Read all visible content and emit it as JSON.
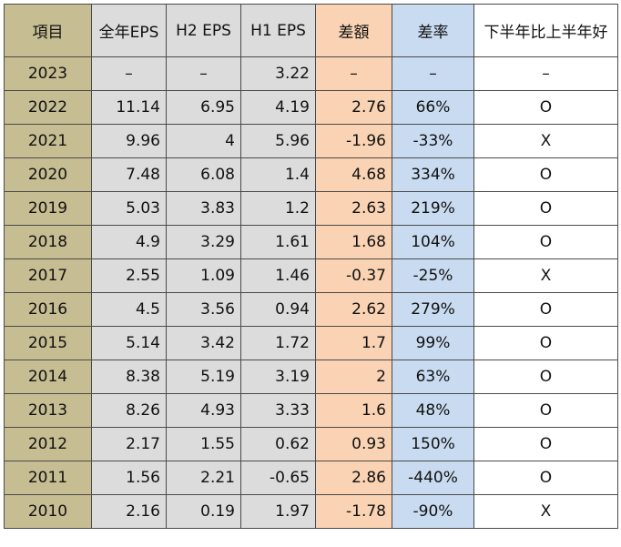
{
  "headers": [
    "項目",
    "全年EPS",
    "H2 EPS",
    "H1 EPS",
    "差額",
    "差率",
    "下半年比上半年好"
  ],
  "colors": {
    "year": "#c7bd92",
    "eps": "#dcdcdc",
    "diff": "#f9d3b3",
    "rate": "#c9dbf0",
    "verdict": "#ffffff",
    "border": "#4a4a4a"
  },
  "rows": [
    [
      "2023",
      "–",
      "–",
      "3.22",
      "–",
      "–",
      "–"
    ],
    [
      "2022",
      "11.14",
      "6.95",
      "4.19",
      "2.76",
      "66%",
      "O"
    ],
    [
      "2021",
      "9.96",
      "4",
      "5.96",
      "-1.96",
      "-33%",
      "X"
    ],
    [
      "2020",
      "7.48",
      "6.08",
      "1.4",
      "4.68",
      "334%",
      "O"
    ],
    [
      "2019",
      "5.03",
      "3.83",
      "1.2",
      "2.63",
      "219%",
      "O"
    ],
    [
      "2018",
      "4.9",
      "3.29",
      "1.61",
      "1.68",
      "104%",
      "O"
    ],
    [
      "2017",
      "2.55",
      "1.09",
      "1.46",
      "-0.37",
      "-25%",
      "X"
    ],
    [
      "2016",
      "4.5",
      "3.56",
      "0.94",
      "2.62",
      "279%",
      "O"
    ],
    [
      "2015",
      "5.14",
      "3.42",
      "1.72",
      "1.7",
      "99%",
      "O"
    ],
    [
      "2014",
      "8.38",
      "5.19",
      "3.19",
      "2",
      "63%",
      "O"
    ],
    [
      "2013",
      "8.26",
      "4.93",
      "3.33",
      "1.6",
      "48%",
      "O"
    ],
    [
      "2012",
      "2.17",
      "1.55",
      "0.62",
      "0.93",
      "150%",
      "O"
    ],
    [
      "2011",
      "1.56",
      "2.21",
      "-0.65",
      "2.86",
      "-440%",
      "O"
    ],
    [
      "2010",
      "2.16",
      "0.19",
      "1.97",
      "-1.78",
      "-90%",
      "X"
    ]
  ]
}
